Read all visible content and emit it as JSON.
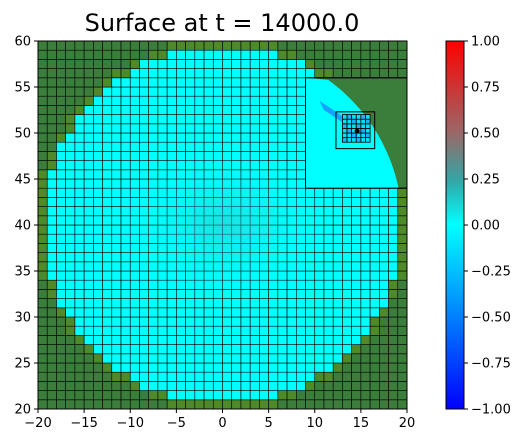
{
  "chart_data": {
    "type": "heatmap",
    "title": "Surface at t =  14000.0",
    "xlabel": "",
    "ylabel": "",
    "xlim": [
      -20,
      20
    ],
    "ylim": [
      20,
      60
    ],
    "xticks": [
      -20,
      -15,
      -10,
      -5,
      0,
      5,
      10,
      15,
      20
    ],
    "yticks": [
      20,
      25,
      30,
      35,
      40,
      45,
      50,
      55,
      60
    ],
    "grid_spacing": 1,
    "land_color": "#3b7d3b",
    "water_color": "#00ffff",
    "colorbar": {
      "vmin": -1.0,
      "vmax": 1.0,
      "ticks": [
        "1.00",
        "0.75",
        "0.50",
        "0.25",
        "0.00",
        "−0.25",
        "−0.50",
        "−0.75",
        "−1.00"
      ],
      "colors": [
        "#ff0000",
        "#9a6868",
        "#33a6a6",
        "#00ffff",
        "#0080ff",
        "#0000ff"
      ]
    },
    "basin": {
      "center": [
        0,
        40
      ],
      "radius": 19.5
    },
    "refined_patches": [
      {
        "xlim": [
          9,
          20
        ],
        "ylim": [
          44,
          56
        ],
        "resolution": "fine"
      },
      {
        "xlim": [
          12.3,
          16.5
        ],
        "ylim": [
          48.3,
          52.3
        ],
        "resolution": "coarse-grid-lines"
      },
      {
        "xlim": [
          13,
          16
        ],
        "ylim": [
          49,
          52
        ],
        "resolution": "finest"
      }
    ],
    "gauge_point": [
      14.6,
      50.2
    ]
  }
}
